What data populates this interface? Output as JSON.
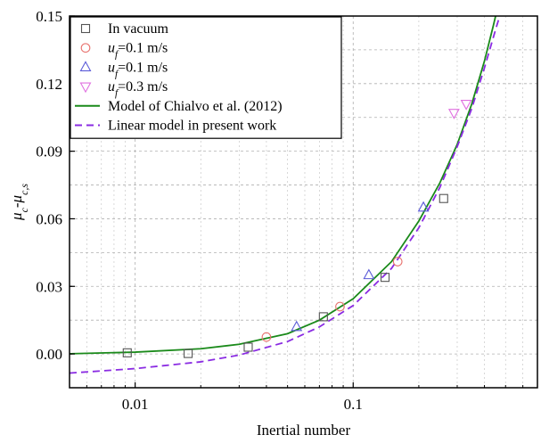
{
  "chart_data": {
    "type": "scatter",
    "xlabel": "Inertial number",
    "ylabel_parts": [
      {
        "t": "μ",
        "style": "italic"
      },
      {
        "t": "c",
        "style": "italic-sub"
      },
      {
        "t": "-",
        "style": "normal"
      },
      {
        "t": "μ",
        "style": "italic"
      },
      {
        "t": "c,s",
        "style": "italic-sub"
      }
    ],
    "xscale": "log",
    "xlim": [
      0.005,
      0.7
    ],
    "ylim": [
      -0.015,
      0.15
    ],
    "xticks": [
      0.01,
      0.1
    ],
    "xtick_labels": [
      "0.01",
      "0.1"
    ],
    "yticks": [
      0.0,
      0.03,
      0.06,
      0.09,
      0.12,
      0.15
    ],
    "ytick_labels": [
      "0.00",
      "0.03",
      "0.06",
      "0.09",
      "0.12",
      "0.15"
    ],
    "grid": true,
    "legend_position": "top-left",
    "series": [
      {
        "name": "In vacuum",
        "marker": "square",
        "color": "#555555",
        "points": [
          [
            0.0092,
            0.0005
          ],
          [
            0.0175,
            0.0002
          ],
          [
            0.033,
            0.003
          ],
          [
            0.073,
            0.0165
          ],
          [
            0.14,
            0.034
          ],
          [
            0.26,
            0.069
          ]
        ]
      },
      {
        "name_parts": [
          {
            "t": "u",
            "style": "italic"
          },
          {
            "t": "f",
            "style": "italic-sub"
          },
          {
            "t": "=0.1 m/s",
            "style": "normal"
          }
        ],
        "marker": "circle",
        "color": "#e8736f",
        "points": [
          [
            0.04,
            0.0075
          ],
          [
            0.087,
            0.021
          ],
          [
            0.16,
            0.041
          ]
        ]
      },
      {
        "name_parts": [
          {
            "t": "u",
            "style": "italic"
          },
          {
            "t": "f",
            "style": "italic-sub"
          },
          {
            "t": "=0.1 m/s",
            "style": "normal"
          }
        ],
        "marker": "triangle-up",
        "color": "#5a5ad8",
        "points": [
          [
            0.055,
            0.012
          ],
          [
            0.118,
            0.035
          ],
          [
            0.21,
            0.065
          ]
        ]
      },
      {
        "name_parts": [
          {
            "t": "u",
            "style": "italic"
          },
          {
            "t": "f",
            "style": "italic-sub"
          },
          {
            "t": "=0.3 m/s",
            "style": "normal"
          }
        ],
        "marker": "triangle-down",
        "color": "#e070e0",
        "points": [
          [
            0.29,
            0.107
          ],
          [
            0.33,
            0.111
          ]
        ]
      },
      {
        "name": "Model of Chialvo et al. (2012)",
        "line": "solid",
        "color": "#1a8a1a",
        "points": [
          [
            0.005,
            0.0001
          ],
          [
            0.01,
            0.0008
          ],
          [
            0.02,
            0.0023
          ],
          [
            0.03,
            0.0043
          ],
          [
            0.05,
            0.009
          ],
          [
            0.07,
            0.015
          ],
          [
            0.1,
            0.0245
          ],
          [
            0.15,
            0.041
          ],
          [
            0.2,
            0.059
          ],
          [
            0.25,
            0.076
          ],
          [
            0.3,
            0.093
          ],
          [
            0.35,
            0.111
          ],
          [
            0.4,
            0.13
          ],
          [
            0.44,
            0.146
          ],
          [
            0.45,
            0.15
          ]
        ]
      },
      {
        "name": "Linear model in present work",
        "line": "dashed",
        "color": "#8a2be2",
        "points": [
          [
            0.005,
            -0.0085
          ],
          [
            0.01,
            -0.0065
          ],
          [
            0.02,
            -0.0035
          ],
          [
            0.03,
            -0.0005
          ],
          [
            0.05,
            0.0055
          ],
          [
            0.07,
            0.012
          ],
          [
            0.1,
            0.0215
          ],
          [
            0.15,
            0.038
          ],
          [
            0.2,
            0.056
          ],
          [
            0.25,
            0.074
          ],
          [
            0.3,
            0.092
          ],
          [
            0.35,
            0.109
          ],
          [
            0.4,
            0.127
          ],
          [
            0.45,
            0.144
          ],
          [
            0.47,
            0.15
          ]
        ]
      }
    ]
  }
}
